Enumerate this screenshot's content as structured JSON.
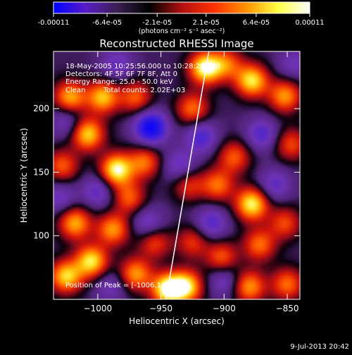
{
  "colorbar": {
    "tick_labels": [
      "-0.00011",
      "-6.4e-05",
      "-2.1e-05",
      "2.1e-05",
      "6.4e-05",
      "0.00011"
    ],
    "tick_values": [
      -0.00011,
      -6.4e-05,
      -2.1e-05,
      2.1e-05,
      6.4e-05,
      0.00011
    ],
    "range": [
      -0.00011,
      0.00011
    ],
    "unit_label": "(photons cm⁻² s⁻¹ asec⁻²)",
    "colors": [
      "#0000ff",
      "#5a1cc8",
      "#3a2050",
      "#000000",
      "#b01010",
      "#ff3000",
      "#ff9000",
      "#ffff40",
      "#ffffff"
    ]
  },
  "chart_data": {
    "type": "heatmap",
    "title": "Reconstructed RHESSI Image",
    "xlabel": "Heliocentric X (arcsec)",
    "ylabel": "Heliocentric Y (arcsec)",
    "xlim": [
      -1035,
      -840
    ],
    "ylim": [
      50,
      245
    ],
    "x_ticks": [
      -1000,
      -950,
      -900,
      -850
    ],
    "x_tick_labels": [
      "−1000",
      "−950",
      "−900",
      "−850"
    ],
    "y_ticks": [
      100,
      150,
      200
    ],
    "y_tick_labels": [
      "100",
      "150",
      "200"
    ],
    "limb_line": [
      [
        -946,
        50
      ],
      [
        -912,
        245
      ]
    ],
    "blobs": [
      {
        "x": -915,
        "y": 232,
        "v": 1.0
      },
      {
        "x": -1022,
        "y": 209,
        "v": 0.75
      },
      {
        "x": -996,
        "y": 209,
        "v": 0.8
      },
      {
        "x": -970,
        "y": 209,
        "v": 0.55
      },
      {
        "x": -1008,
        "y": 180,
        "v": 0.85
      },
      {
        "x": -1028,
        "y": 155,
        "v": 0.55
      },
      {
        "x": -985,
        "y": 152,
        "v": 1.0
      },
      {
        "x": -963,
        "y": 158,
        "v": 0.6
      },
      {
        "x": -975,
        "y": 130,
        "v": 0.55
      },
      {
        "x": -1018,
        "y": 110,
        "v": 0.75
      },
      {
        "x": -988,
        "y": 105,
        "v": 0.7
      },
      {
        "x": -1005,
        "y": 80,
        "v": 0.9
      },
      {
        "x": -1025,
        "y": 68,
        "v": 0.85
      },
      {
        "x": -970,
        "y": 70,
        "v": 0.7
      },
      {
        "x": -945,
        "y": 58,
        "v": 1.0
      },
      {
        "x": -955,
        "y": 95,
        "v": 0.5
      },
      {
        "x": -930,
        "y": 60,
        "v": 0.9
      },
      {
        "x": -925,
        "y": 200,
        "v": 0.6
      },
      {
        "x": -898,
        "y": 235,
        "v": 0.55
      },
      {
        "x": -878,
        "y": 222,
        "v": 0.9
      },
      {
        "x": -852,
        "y": 210,
        "v": 0.7
      },
      {
        "x": -847,
        "y": 172,
        "v": 0.5
      },
      {
        "x": -892,
        "y": 162,
        "v": 0.55
      },
      {
        "x": -905,
        "y": 140,
        "v": 0.6
      },
      {
        "x": -878,
        "y": 125,
        "v": 0.95
      },
      {
        "x": -852,
        "y": 110,
        "v": 0.5
      },
      {
        "x": -872,
        "y": 93,
        "v": 0.6
      },
      {
        "x": -902,
        "y": 83,
        "v": 0.55
      },
      {
        "x": -925,
        "y": 95,
        "v": 0.45
      },
      {
        "x": -880,
        "y": 60,
        "v": 0.7
      },
      {
        "x": -850,
        "y": 62,
        "v": 0.6
      },
      {
        "x": -928,
        "y": 140,
        "v": 0.45
      },
      {
        "x": -958,
        "y": 185,
        "v": -0.9
      },
      {
        "x": -918,
        "y": 178,
        "v": -0.5
      },
      {
        "x": -935,
        "y": 155,
        "v": -0.4
      },
      {
        "x": -870,
        "y": 180,
        "v": -0.45
      },
      {
        "x": -1000,
        "y": 135,
        "v": -0.4
      },
      {
        "x": -1030,
        "y": 130,
        "v": -0.35
      },
      {
        "x": -1025,
        "y": 190,
        "v": -0.35
      },
      {
        "x": -960,
        "y": 110,
        "v": -0.4
      },
      {
        "x": -910,
        "y": 110,
        "v": -0.45
      },
      {
        "x": -860,
        "y": 140,
        "v": -0.4
      },
      {
        "x": -845,
        "y": 235,
        "v": -0.3
      },
      {
        "x": -985,
        "y": 235,
        "v": -0.35
      },
      {
        "x": -900,
        "y": 65,
        "v": -0.35
      },
      {
        "x": -990,
        "y": 60,
        "v": -0.3
      }
    ]
  },
  "annotations": {
    "line1": "18-May-2005 10:25:56.000 to 10:28:28.000",
    "line2": "Detectors: 4F 5F 6F 7F 8F, Att 0",
    "line3": "Energy Range: 25.0 - 50.0 keV",
    "line4_method": "Clean",
    "line4_counts": "Total counts: 2.02E+03",
    "peak": "Position of Peak = [-1006,148]"
  },
  "timestamp": "9-Jul-2013 20:42"
}
